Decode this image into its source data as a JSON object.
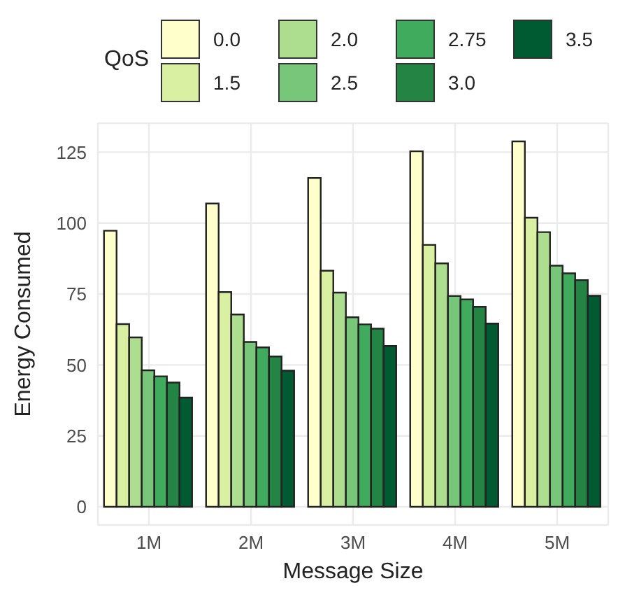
{
  "chart_data": {
    "type": "bar",
    "xlabel": "Message Size",
    "ylabel": "Energy Consumed",
    "legend_title": "QoS",
    "categories": [
      "1M",
      "2M",
      "3M",
      "4M",
      "5M"
    ],
    "series": [
      {
        "name": "0.0",
        "color": "#ffffcc",
        "values": [
          97.3,
          106.9,
          115.9,
          125.3,
          128.8
        ]
      },
      {
        "name": "1.5",
        "color": "#d9f0a3",
        "values": [
          64.4,
          75.7,
          83.2,
          92.3,
          101.9
        ]
      },
      {
        "name": "2.0",
        "color": "#addd8e",
        "values": [
          59.7,
          67.8,
          75.5,
          85.8,
          96.8
        ]
      },
      {
        "name": "2.5",
        "color": "#78c679",
        "values": [
          48.1,
          58.1,
          66.8,
          74.3,
          85.0
        ]
      },
      {
        "name": "2.75",
        "color": "#41ab5d",
        "values": [
          46.0,
          56.2,
          64.3,
          73.1,
          82.3
        ]
      },
      {
        "name": "3.0",
        "color": "#238443",
        "values": [
          43.8,
          53.0,
          62.8,
          70.5,
          79.9
        ]
      },
      {
        "name": "3.5",
        "color": "#005a32",
        "values": [
          38.5,
          48.0,
          56.7,
          64.6,
          74.4
        ]
      }
    ],
    "ylim": [
      -6.4,
      135.2
    ],
    "yticks": [
      0,
      25,
      50,
      75,
      100,
      125
    ],
    "grid": true,
    "legend": "top"
  }
}
